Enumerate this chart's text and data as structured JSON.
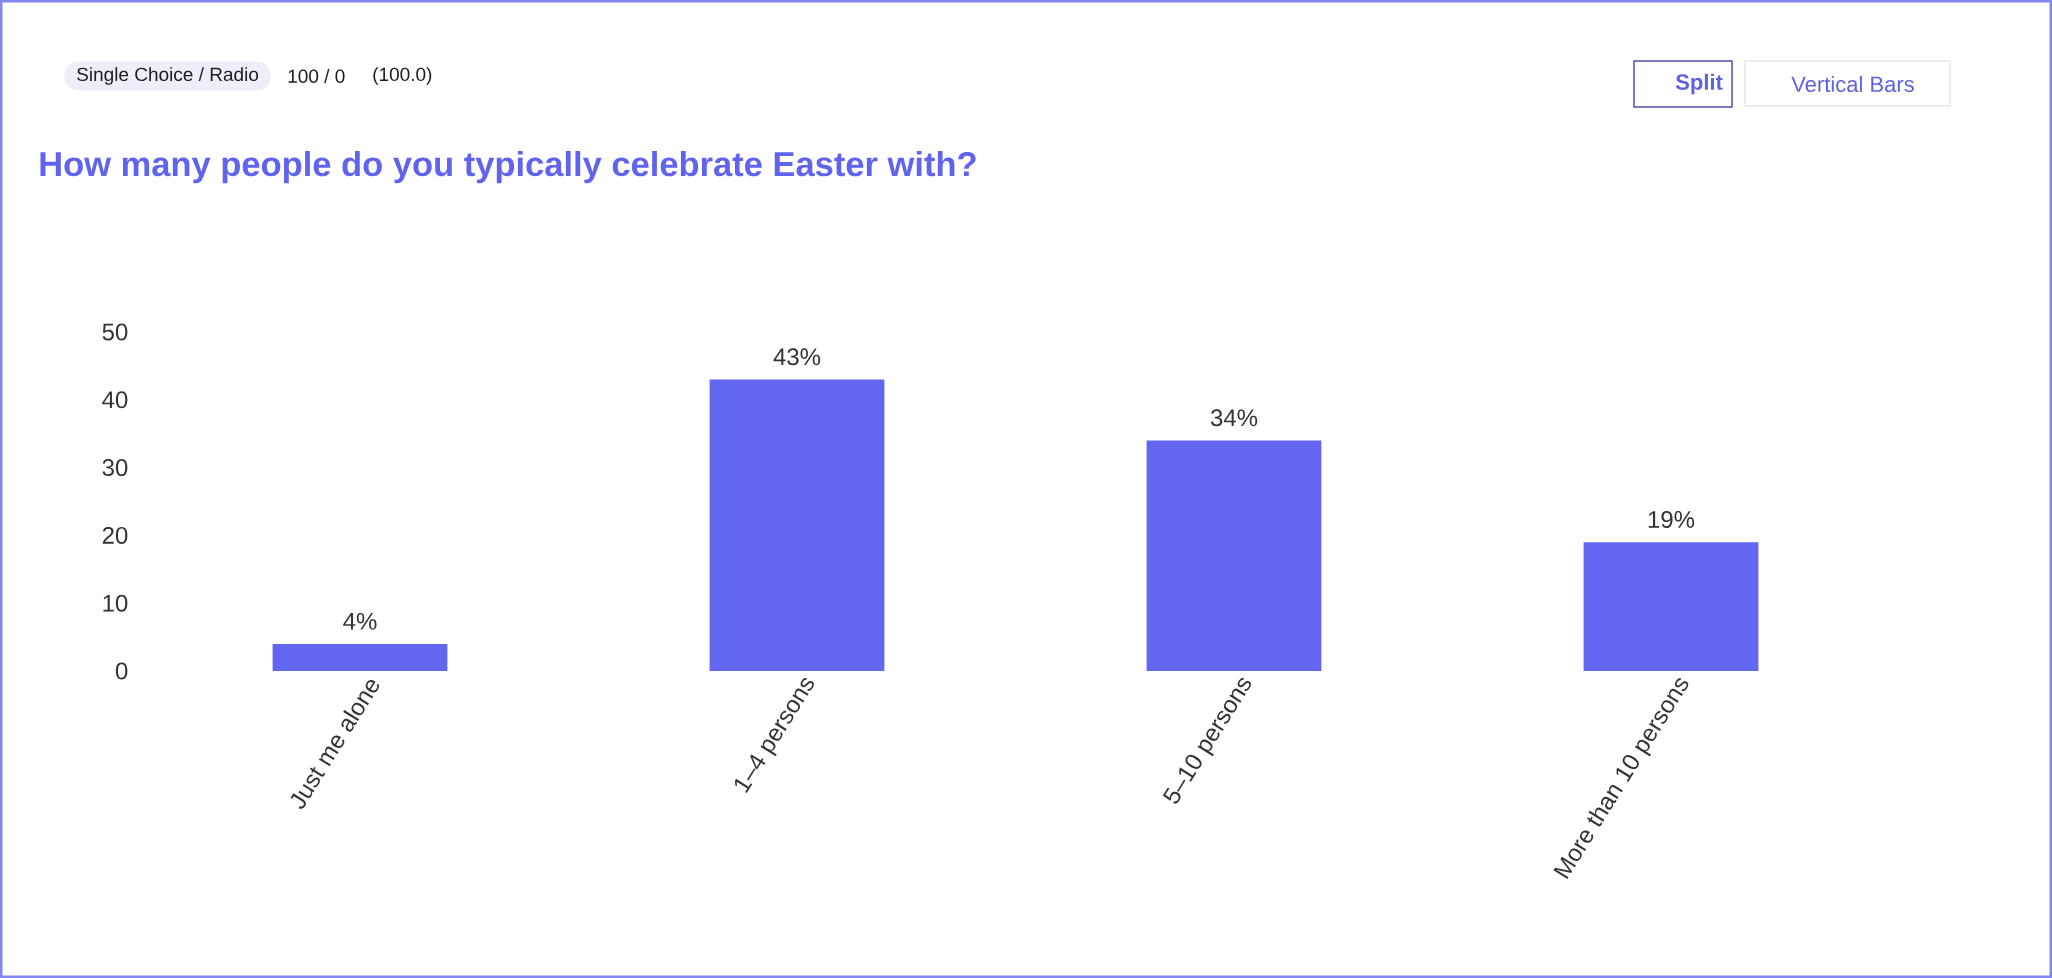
{
  "chart_data": {
    "type": "bar",
    "title": "How many people do you typically celebrate Easter with?",
    "categories": [
      "Just me alone",
      "1–4 persons",
      "5–10 persons",
      "More than 10 persons"
    ],
    "values": [
      4,
      43,
      34,
      19
    ],
    "color": "#6366f1",
    "value_labels": [
      "4%",
      "43%",
      "34%",
      "19%"
    ],
    "ylim": [
      0,
      50
    ],
    "yticks": [
      0,
      10,
      20,
      30,
      40,
      50
    ],
    "annotations": [
      "Single Choice / Radio",
      "100 / 0",
      "(100.0)",
      "Split",
      "Vertical Bars"
    ]
  }
}
